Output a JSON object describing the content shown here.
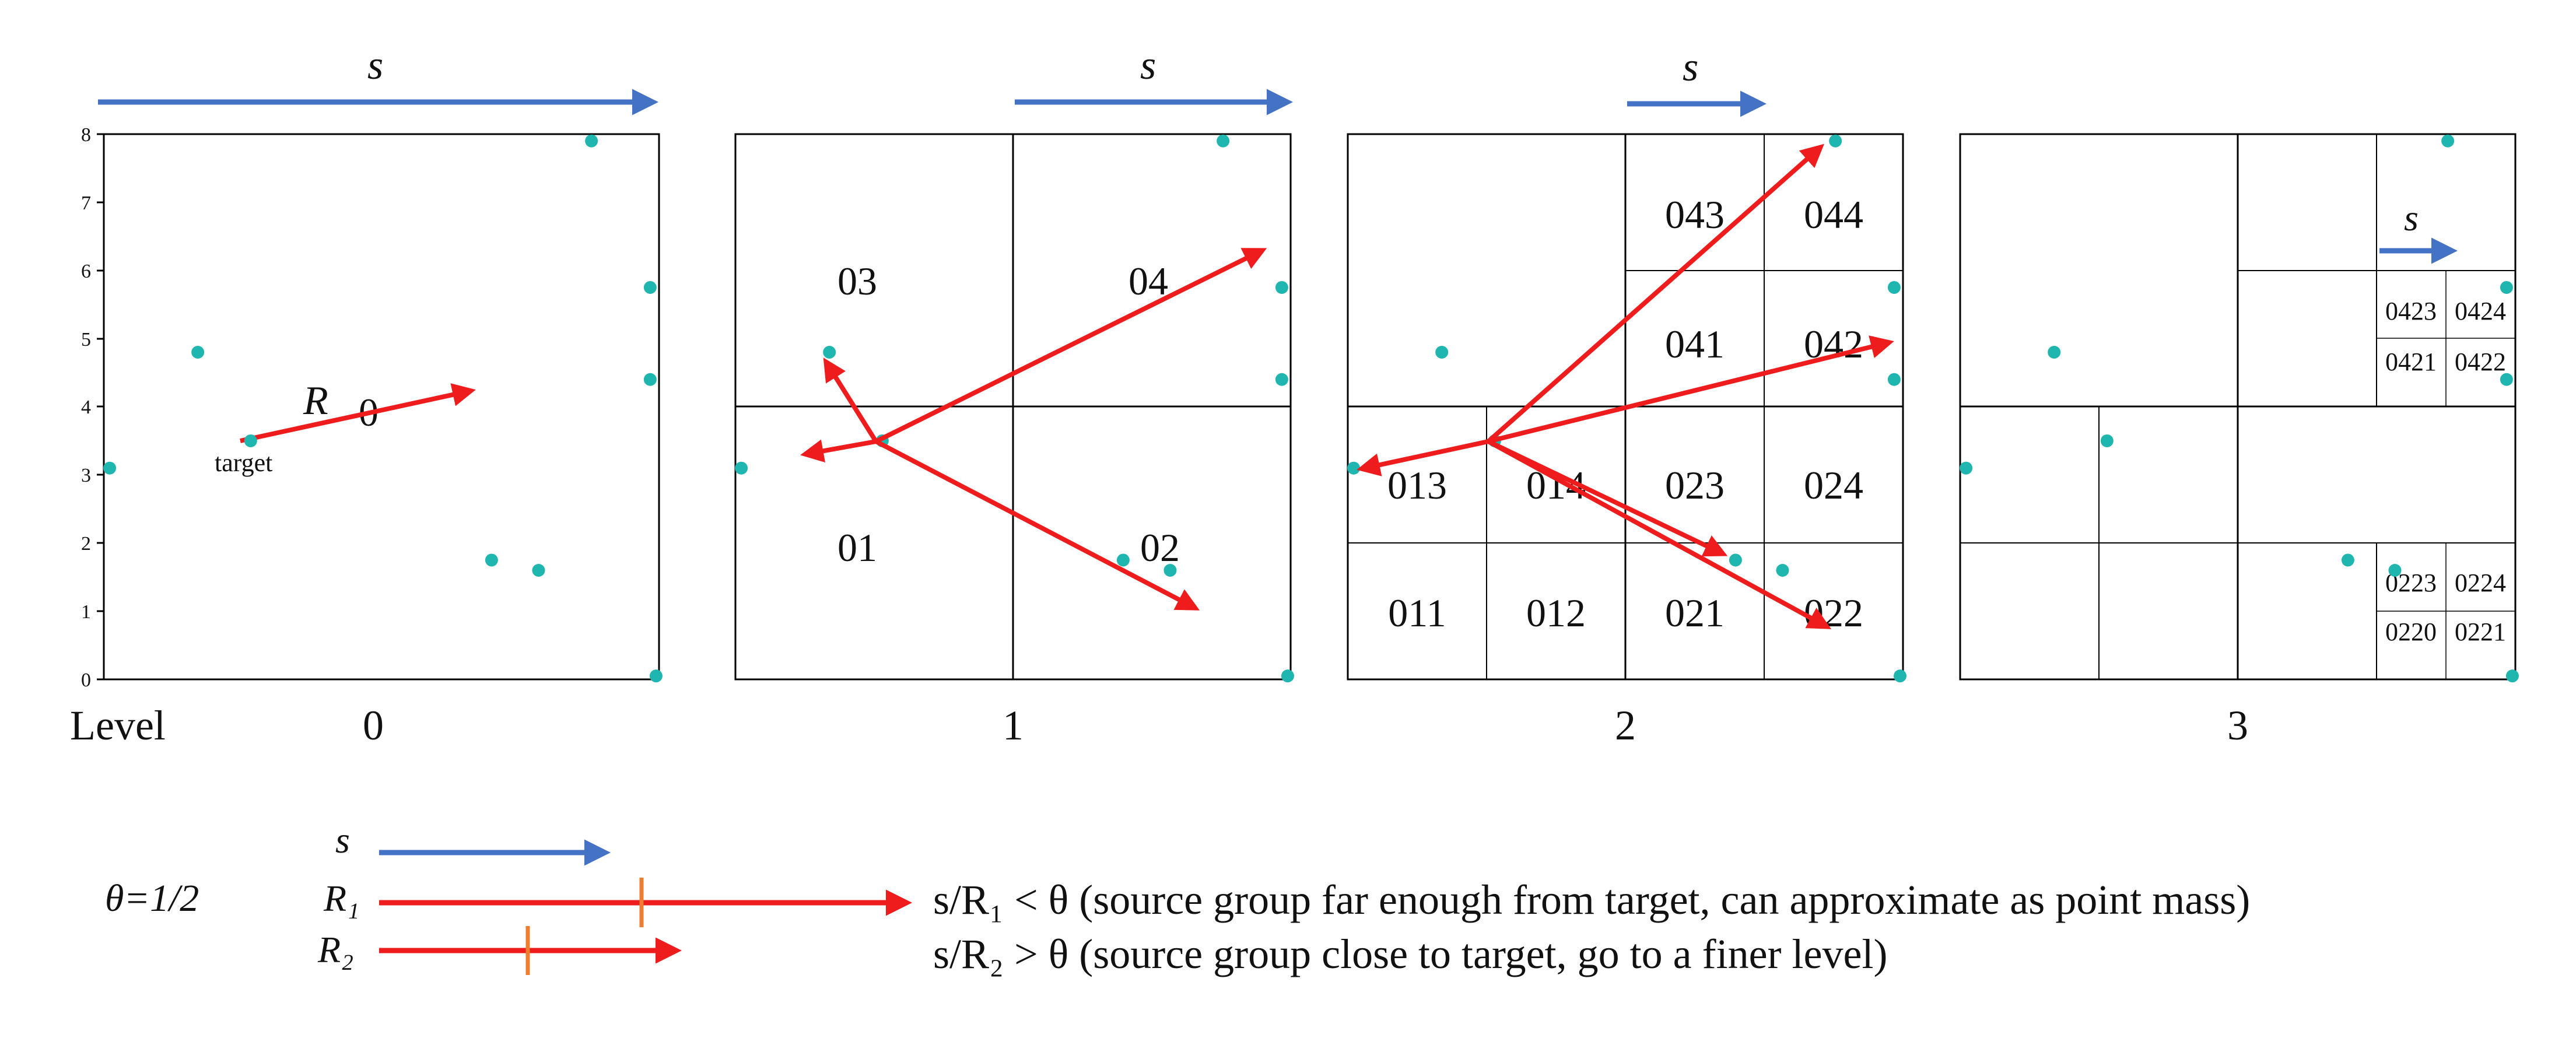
{
  "colors": {
    "points": "#1fb6b0",
    "red_arrow": "#ee1c1c",
    "blue_arrow": "#4472c4",
    "tick_mark": "#ed7d31",
    "grid": "#000000"
  },
  "axis_ticks": [
    "0",
    "1",
    "2",
    "3",
    "4",
    "5",
    "6",
    "7",
    "8"
  ],
  "points": [
    [
      0.1,
      3.1
    ],
    [
      1.6,
      4.8
    ],
    [
      2.5,
      3.5
    ],
    [
      6.6,
      1.75
    ],
    [
      7.4,
      1.6
    ],
    [
      8.3,
      7.9
    ],
    [
      9.3,
      5.75
    ],
    [
      9.3,
      4.4
    ],
    [
      9.4,
      0.05
    ]
  ],
  "size_symbol": "s",
  "distance_symbol": "R",
  "target_label": "target",
  "level_caption": "Level",
  "panels": [
    {
      "level": "0",
      "cell_labels": [
        "0"
      ]
    },
    {
      "level": "1",
      "cell_labels": [
        "03",
        "04",
        "01",
        "02"
      ]
    },
    {
      "level": "2",
      "cell_labels": [
        "043",
        "044",
        "041",
        "042",
        "013",
        "014",
        "023",
        "024",
        "011",
        "012",
        "021",
        "022"
      ]
    },
    {
      "level": "3",
      "cell_labels": [
        "0423",
        "0424",
        "0421",
        "0422",
        "0223",
        "0224",
        "0220",
        "0221"
      ]
    }
  ],
  "legend": {
    "theta": "θ=1/2",
    "s_label": "s",
    "r1_label": "R₁",
    "r2_label": "R₂",
    "rule_far": "s/R₁ < θ  (source group far enough from target, can approximate as point mass)",
    "rule_close": "s/R₂ > θ (source group close to target, go to a finer level)"
  }
}
